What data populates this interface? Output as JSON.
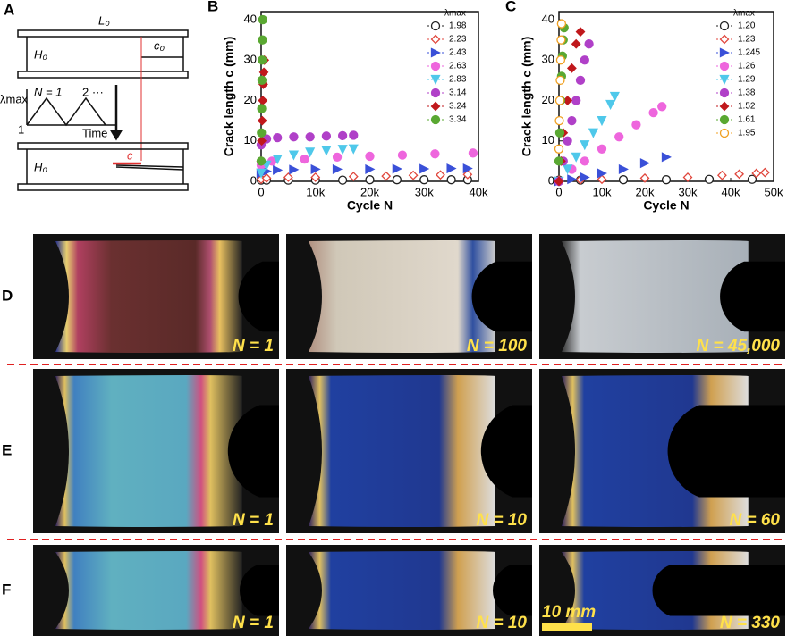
{
  "panels": {
    "a": "A",
    "d": "D",
    "e": "E",
    "f": "F"
  },
  "diagram": {
    "top_length": "L₀",
    "top_height": "H₀",
    "top_crack": "c₀",
    "cycle_label": "N = 1",
    "cycle_more": "2 ···",
    "y_label": "λmax",
    "y_base": "1",
    "x_label": "Time",
    "bottom_height": "H₀",
    "bottom_crack": "c"
  },
  "photos": {
    "rows": [
      {
        "captions": [
          "N = 1",
          "N = 100",
          "N = 45,000"
        ]
      },
      {
        "captions": [
          "N = 1",
          "N = 10",
          "N = 60"
        ]
      },
      {
        "captions": [
          "N = 1",
          "N = 10",
          "N = 330"
        ]
      }
    ],
    "scale_bar": "10 mm"
  },
  "chart_data": [
    {
      "type": "scatter",
      "label": "B",
      "x_label": "Cycle N",
      "y_label": "Crack length c (mm)",
      "legend_title": "λmax",
      "xlim": [
        0,
        40000
      ],
      "xticks": [
        0,
        {
          "value": 10000,
          "label": "10k"
        },
        {
          "value": 20000,
          "label": "20k"
        },
        {
          "value": 30000,
          "label": "30k"
        },
        {
          "value": 40000,
          "label": "40k"
        }
      ],
      "ylim": [
        0,
        42
      ],
      "yticks": [
        0,
        10,
        20,
        30,
        40
      ],
      "series": [
        {
          "name": "1.98",
          "color": "#222222",
          "marker": "circle-open",
          "x": [
            0,
            1000,
            5000,
            10000,
            15000,
            20000,
            25000,
            30000,
            35000,
            38000
          ],
          "values": [
            0.3,
            0.3,
            0.3,
            0.3,
            0.3,
            0.4,
            0.4,
            0.4,
            0.4,
            0.4
          ]
        },
        {
          "name": "2.23",
          "color": "#e0463c",
          "marker": "diamond-open",
          "x": [
            0,
            1000,
            5000,
            10000,
            17000,
            23000,
            28000,
            33000,
            38000
          ],
          "values": [
            0.5,
            0.8,
            1,
            1,
            1.2,
            1.3,
            1.5,
            1.6,
            1.7
          ]
        },
        {
          "name": "2.43",
          "color": "#3a50d8",
          "marker": "triangle-right",
          "x": [
            0,
            1000,
            3000,
            6000,
            10000,
            14000,
            20000,
            25000,
            30000,
            35000,
            38000
          ],
          "values": [
            2,
            2.5,
            2.8,
            2.9,
            3,
            3,
            3,
            3.1,
            3.1,
            3.2,
            3.2
          ]
        },
        {
          "name": "2.63",
          "color": "#ee66dd",
          "marker": "circle",
          "x": [
            0,
            2000,
            8000,
            14000,
            20000,
            26000,
            32000,
            39000
          ],
          "values": [
            4,
            5,
            5.5,
            6,
            6.2,
            6.5,
            6.8,
            7
          ]
        },
        {
          "name": "2.83",
          "color": "#4fc8ea",
          "marker": "triangle-down",
          "x": [
            0,
            1000,
            3000,
            6000,
            9000,
            12000,
            15000,
            17000
          ],
          "values": [
            2,
            4,
            5.5,
            6.5,
            7.2,
            7.6,
            7.9,
            8
          ]
        },
        {
          "name": "3.14",
          "color": "#b040c8",
          "marker": "circle",
          "x": [
            0,
            1000,
            3000,
            6000,
            9000,
            12000,
            15000,
            17000
          ],
          "values": [
            9,
            10.5,
            10.8,
            11,
            11,
            11.2,
            11.3,
            11.4
          ]
        },
        {
          "name": "3.24",
          "color": "#c0181c",
          "marker": "diamond",
          "x": [
            0,
            100,
            200,
            300,
            400,
            500,
            600
          ],
          "values": [
            5,
            10,
            15,
            20,
            24,
            27,
            30
          ]
        },
        {
          "name": "3.34",
          "color": "#5aa832",
          "marker": "circle",
          "x": [
            0,
            50,
            100,
            150,
            200,
            250,
            300
          ],
          "values": [
            5,
            12,
            18,
            25,
            30,
            35,
            40
          ]
        }
      ]
    },
    {
      "type": "scatter",
      "label": "C",
      "x_label": "Cycle N",
      "y_label": "Crack length c (mm)",
      "legend_title": "λmax",
      "xlim": [
        0,
        50000
      ],
      "xticks": [
        0,
        {
          "value": 10000,
          "label": "10k"
        },
        {
          "value": 20000,
          "label": "20k"
        },
        {
          "value": 30000,
          "label": "30k"
        },
        {
          "value": 40000,
          "label": "40k"
        },
        {
          "value": 50000,
          "label": "50k"
        }
      ],
      "ylim": [
        0,
        42
      ],
      "yticks": [
        0,
        10,
        20,
        30,
        40
      ],
      "series": [
        {
          "name": "1.20",
          "color": "#222222",
          "marker": "circle-open",
          "x": [
            0,
            5000,
            15000,
            25000,
            35000,
            45000
          ],
          "values": [
            0.3,
            0.3,
            0.4,
            0.4,
            0.5,
            0.5
          ]
        },
        {
          "name": "1.23",
          "color": "#e0463c",
          "marker": "diamond-open",
          "x": [
            0,
            5000,
            10000,
            20000,
            30000,
            38000,
            42000,
            46000,
            48000
          ],
          "values": [
            0.3,
            0.4,
            0.5,
            0.8,
            1,
            1.5,
            1.8,
            2,
            2.2
          ]
        },
        {
          "name": "1.245",
          "color": "#3a50d8",
          "marker": "triangle-right",
          "x": [
            0,
            3000,
            6000,
            10000,
            15000,
            20000,
            25000
          ],
          "values": [
            0,
            0.5,
            1,
            2,
            3,
            4.5,
            6
          ]
        },
        {
          "name": "1.26",
          "color": "#ee66dd",
          "marker": "circle",
          "x": [
            0,
            3000,
            6000,
            10000,
            14000,
            18000,
            22000,
            24000
          ],
          "values": [
            0,
            3,
            5,
            8,
            11,
            14,
            17,
            18.5
          ]
        },
        {
          "name": "1.29",
          "color": "#4fc8ea",
          "marker": "triangle-down",
          "x": [
            0,
            2000,
            4000,
            6000,
            8000,
            10000,
            12000,
            13000
          ],
          "values": [
            0,
            3,
            6,
            9,
            12,
            15,
            19,
            21
          ]
        },
        {
          "name": "1.38",
          "color": "#b040c8",
          "marker": "circle",
          "x": [
            0,
            1000,
            2000,
            3000,
            4000,
            5000,
            6000,
            7000
          ],
          "values": [
            0,
            5,
            10,
            15,
            20,
            25,
            30,
            34
          ]
        },
        {
          "name": "1.52",
          "color": "#c0181c",
          "marker": "diamond",
          "x": [
            0,
            500,
            1000,
            2000,
            3000,
            4000,
            5000
          ],
          "values": [
            0,
            5,
            12,
            20,
            28,
            34,
            37
          ]
        },
        {
          "name": "1.61",
          "color": "#5aa832",
          "marker": "circle",
          "x": [
            0,
            200,
            400,
            600,
            800,
            1000,
            1200
          ],
          "values": [
            5,
            12,
            20,
            26,
            31,
            35,
            38
          ]
        },
        {
          "name": "1.95",
          "color": "#f0a020",
          "marker": "circle-open",
          "x": [
            0,
            100,
            200,
            300,
            400,
            500,
            600
          ],
          "values": [
            8,
            15,
            20,
            25,
            30,
            35,
            39
          ]
        }
      ]
    }
  ]
}
